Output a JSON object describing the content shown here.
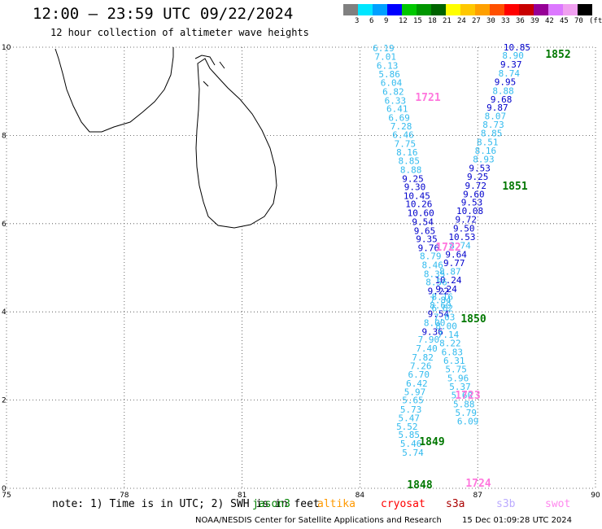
{
  "header": {
    "title": "12:00 – 23:59 UTC 09/22/2024",
    "subtitle": "12 hour collection of altimeter wave heights"
  },
  "colorbar": {
    "labels": [
      "3",
      "6",
      "9",
      "12",
      "15",
      "18",
      "21",
      "24",
      "27",
      "30",
      "33",
      "36",
      "39",
      "42",
      "45",
      "70"
    ],
    "unit": "(ft)",
    "colors": [
      "#808080",
      "#00e6ff",
      "#00a0ff",
      "#0000ff",
      "#00c800",
      "#009600",
      "#006400",
      "#ffff00",
      "#ffc800",
      "#ffa000",
      "#ff5000",
      "#ff0000",
      "#c80000",
      "#960096",
      "#dc78ff",
      "#f0a0f0",
      "#000000"
    ]
  },
  "legend": {
    "note": "note: 1) Time is in UTC; 2) SWH is in feet",
    "satellites": [
      {
        "name": "jason3",
        "color": "#008000"
      },
      {
        "name": "altika",
        "color": "#ff9900"
      },
      {
        "name": "cryosat",
        "color": "#ff0000"
      },
      {
        "name": "s3a",
        "color": "#aa0000"
      },
      {
        "name": "s3b",
        "color": "#bbaaff"
      },
      {
        "name": "swot",
        "color": "#ff88ee"
      }
    ]
  },
  "footer": {
    "agency": "NOAA/NESDIS Center for Satellite Applications and Research",
    "timestamp": "15 Dec 01:09:28 UTC 2024"
  },
  "map": {
    "lon_range": [
      75,
      90
    ],
    "lat_range": [
      0,
      10
    ],
    "x_ticks": [
      "75",
      "78",
      "81",
      "84",
      "87",
      "90"
    ],
    "y_ticks": [
      "0",
      "2",
      "4",
      "6",
      "8",
      "10"
    ],
    "grid": true,
    "colors": {
      "cyan": "#33bbee",
      "blue": "#0000cc",
      "green": "#007700",
      "pink": "#ff77dd"
    }
  },
  "observations": [
    {
      "v": "10.85",
      "lon": 88.0,
      "lat": 9.93,
      "c": "blue"
    },
    {
      "v": "8.90",
      "lon": 87.9,
      "lat": 9.74,
      "c": "cyan"
    },
    {
      "v": "9.37",
      "lon": 87.85,
      "lat": 9.54,
      "c": "blue"
    },
    {
      "v": "8.74",
      "lon": 87.8,
      "lat": 9.34,
      "c": "cyan"
    },
    {
      "v": "9.95",
      "lon": 87.7,
      "lat": 9.14,
      "c": "blue"
    },
    {
      "v": "8.88",
      "lon": 87.65,
      "lat": 8.94,
      "c": "cyan"
    },
    {
      "v": "9.68",
      "lon": 87.6,
      "lat": 8.75,
      "c": "blue"
    },
    {
      "v": "9.87",
      "lon": 87.5,
      "lat": 8.56,
      "c": "blue"
    },
    {
      "v": "8.07",
      "lon": 87.45,
      "lat": 8.37,
      "c": "cyan"
    },
    {
      "v": "8.73",
      "lon": 87.4,
      "lat": 8.17,
      "c": "cyan"
    },
    {
      "v": "8.85",
      "lon": 87.35,
      "lat": 7.98,
      "c": "cyan"
    },
    {
      "v": "8.51",
      "lon": 87.25,
      "lat": 7.78,
      "c": "cyan"
    },
    {
      "v": "8.16",
      "lon": 87.2,
      "lat": 7.58,
      "c": "cyan"
    },
    {
      "v": "8.93",
      "lon": 87.15,
      "lat": 7.39,
      "c": "cyan"
    },
    {
      "v": "9.53",
      "lon": 87.05,
      "lat": 7.19,
      "c": "blue"
    },
    {
      "v": "9.25",
      "lon": 87.0,
      "lat": 6.99,
      "c": "blue"
    },
    {
      "v": "9.72",
      "lon": 86.95,
      "lat": 6.79,
      "c": "blue"
    },
    {
      "v": "9.60",
      "lon": 86.9,
      "lat": 6.6,
      "c": "blue"
    },
    {
      "v": "9.53",
      "lon": 86.85,
      "lat": 6.41,
      "c": "blue"
    },
    {
      "v": "10.08",
      "lon": 86.8,
      "lat": 6.22,
      "c": "blue"
    },
    {
      "v": "9.72",
      "lon": 86.7,
      "lat": 6.02,
      "c": "blue"
    },
    {
      "v": "9.50",
      "lon": 86.65,
      "lat": 5.82,
      "c": "blue"
    },
    {
      "v": "10.53",
      "lon": 86.6,
      "lat": 5.63,
      "c": "blue"
    },
    {
      "v": "8.74",
      "lon": 86.55,
      "lat": 5.43,
      "c": "cyan"
    },
    {
      "v": "9.64",
      "lon": 86.45,
      "lat": 5.23,
      "c": "blue"
    },
    {
      "v": "9.77",
      "lon": 86.4,
      "lat": 5.04,
      "c": "blue"
    },
    {
      "v": "8.87",
      "lon": 86.3,
      "lat": 4.84,
      "c": "cyan"
    },
    {
      "v": "10.24",
      "lon": 86.25,
      "lat": 4.65,
      "c": "blue"
    },
    {
      "v": "9.24",
      "lon": 86.2,
      "lat": 4.45,
      "c": "blue"
    },
    {
      "v": "8.16",
      "lon": 86.1,
      "lat": 4.27,
      "c": "cyan"
    },
    {
      "v": "8.60",
      "lon": 86.05,
      "lat": 4.08,
      "c": "cyan"
    },
    {
      "v": "9.54",
      "lon": 86.0,
      "lat": 3.88,
      "c": "blue"
    },
    {
      "v": "8.00",
      "lon": 85.9,
      "lat": 3.68,
      "c": "cyan"
    },
    {
      "v": "9.36",
      "lon": 85.85,
      "lat": 3.48,
      "c": "blue"
    },
    {
      "v": "7.90",
      "lon": 85.75,
      "lat": 3.3,
      "c": "cyan"
    },
    {
      "v": "7.40",
      "lon": 85.7,
      "lat": 3.1,
      "c": "cyan"
    },
    {
      "v": "7.82",
      "lon": 85.6,
      "lat": 2.9,
      "c": "cyan"
    },
    {
      "v": "7.26",
      "lon": 85.55,
      "lat": 2.7,
      "c": "cyan"
    },
    {
      "v": "6.70",
      "lon": 85.5,
      "lat": 2.51,
      "c": "cyan"
    },
    {
      "v": "6.42",
      "lon": 85.45,
      "lat": 2.31,
      "c": "cyan"
    },
    {
      "v": "5.97",
      "lon": 85.4,
      "lat": 2.11,
      "c": "cyan"
    },
    {
      "v": "5.65",
      "lon": 85.35,
      "lat": 1.93,
      "c": "cyan"
    },
    {
      "v": "5.73",
      "lon": 85.3,
      "lat": 1.72,
      "c": "cyan"
    },
    {
      "v": "5.47",
      "lon": 85.25,
      "lat": 1.52,
      "c": "cyan"
    },
    {
      "v": "5.52",
      "lon": 85.2,
      "lat": 1.33,
      "c": "cyan"
    },
    {
      "v": "5.85",
      "lon": 85.25,
      "lat": 1.14,
      "c": "cyan"
    },
    {
      "v": "5.46",
      "lon": 85.3,
      "lat": 0.94,
      "c": "cyan"
    },
    {
      "v": "5.74",
      "lon": 85.35,
      "lat": 0.74,
      "c": "cyan"
    },
    {
      "v": "6.19",
      "lon": 84.6,
      "lat": 9.91,
      "c": "cyan"
    },
    {
      "v": "7.01",
      "lon": 84.65,
      "lat": 9.71,
      "c": "cyan"
    },
    {
      "v": "6.13",
      "lon": 84.7,
      "lat": 9.51,
      "c": "cyan"
    },
    {
      "v": "5.86",
      "lon": 84.75,
      "lat": 9.32,
      "c": "cyan"
    },
    {
      "v": "6.04",
      "lon": 84.8,
      "lat": 9.12,
      "c": "cyan"
    },
    {
      "v": "6.82",
      "lon": 84.85,
      "lat": 8.92,
      "c": "cyan"
    },
    {
      "v": "6.33",
      "lon": 84.9,
      "lat": 8.72,
      "c": "cyan"
    },
    {
      "v": "6.41",
      "lon": 84.95,
      "lat": 8.53,
      "c": "cyan"
    },
    {
      "v": "6.69",
      "lon": 85.0,
      "lat": 8.33,
      "c": "cyan"
    },
    {
      "v": "7.28",
      "lon": 85.05,
      "lat": 8.14,
      "c": "cyan"
    },
    {
      "v": "6.46",
      "lon": 85.1,
      "lat": 7.94,
      "c": "cyan"
    },
    {
      "v": "7.75",
      "lon": 85.15,
      "lat": 7.74,
      "c": "cyan"
    },
    {
      "v": "8.16",
      "lon": 85.2,
      "lat": 7.55,
      "c": "cyan"
    },
    {
      "v": "8.85",
      "lon": 85.25,
      "lat": 7.35,
      "c": "cyan"
    },
    {
      "v": "8.88",
      "lon": 85.3,
      "lat": 7.15,
      "c": "cyan"
    },
    {
      "v": "9.25",
      "lon": 85.35,
      "lat": 6.95,
      "c": "blue"
    },
    {
      "v": "9.30",
      "lon": 85.4,
      "lat": 6.76,
      "c": "blue"
    },
    {
      "v": "10.45",
      "lon": 85.45,
      "lat": 6.56,
      "c": "blue"
    },
    {
      "v": "10.26",
      "lon": 85.5,
      "lat": 6.37,
      "c": "blue"
    },
    {
      "v": "10.60",
      "lon": 85.55,
      "lat": 6.17,
      "c": "blue"
    },
    {
      "v": "9.54",
      "lon": 85.6,
      "lat": 5.97,
      "c": "blue"
    },
    {
      "v": "9.65",
      "lon": 85.65,
      "lat": 5.77,
      "c": "blue"
    },
    {
      "v": "9.35",
      "lon": 85.7,
      "lat": 5.58,
      "c": "blue"
    },
    {
      "v": "9.76",
      "lon": 85.75,
      "lat": 5.38,
      "c": "blue"
    },
    {
      "v": "8.79",
      "lon": 85.8,
      "lat": 5.19,
      "c": "cyan"
    },
    {
      "v": "8.46",
      "lon": 85.85,
      "lat": 4.99,
      "c": "cyan"
    },
    {
      "v": "8.35",
      "lon": 85.9,
      "lat": 4.79,
      "c": "cyan"
    },
    {
      "v": "8.56",
      "lon": 85.95,
      "lat": 4.6,
      "c": "cyan"
    },
    {
      "v": "9.22",
      "lon": 86.0,
      "lat": 4.4,
      "c": "blue"
    },
    {
      "v": "7.84",
      "lon": 86.05,
      "lat": 4.2,
      "c": "cyan"
    },
    {
      "v": "6.62",
      "lon": 86.1,
      "lat": 4.01,
      "c": "cyan"
    },
    {
      "v": "7.03",
      "lon": 86.15,
      "lat": 3.81,
      "c": "cyan"
    },
    {
      "v": "8.00",
      "lon": 86.2,
      "lat": 3.61,
      "c": "cyan"
    },
    {
      "v": "7.14",
      "lon": 86.25,
      "lat": 3.41,
      "c": "cyan"
    },
    {
      "v": "8.22",
      "lon": 86.3,
      "lat": 3.22,
      "c": "cyan"
    },
    {
      "v": "6.83",
      "lon": 86.35,
      "lat": 3.02,
      "c": "cyan"
    },
    {
      "v": "6.31",
      "lon": 86.4,
      "lat": 2.82,
      "c": "cyan"
    },
    {
      "v": "5.75",
      "lon": 86.45,
      "lat": 2.63,
      "c": "cyan"
    },
    {
      "v": "5.96",
      "lon": 86.5,
      "lat": 2.43,
      "c": "cyan"
    },
    {
      "v": "5.37",
      "lon": 86.55,
      "lat": 2.23,
      "c": "cyan"
    },
    {
      "v": "5.60",
      "lon": 86.6,
      "lat": 2.04,
      "c": "cyan"
    },
    {
      "v": "5.88",
      "lon": 86.65,
      "lat": 1.84,
      "c": "cyan"
    },
    {
      "v": "5.79",
      "lon": 86.7,
      "lat": 1.64,
      "c": "cyan"
    },
    {
      "v": "6.09",
      "lon": 86.75,
      "lat": 1.45,
      "c": "cyan"
    }
  ],
  "time_labels": [
    {
      "t": "1852",
      "c": "green"
    },
    {
      "t": "1851",
      "c": "green"
    },
    {
      "t": "1850",
      "c": "green"
    },
    {
      "t": "1849",
      "c": "green"
    },
    {
      "t": "1848",
      "c": "green"
    },
    {
      "t": "1721",
      "c": "pink"
    },
    {
      "t": "1722",
      "c": "pink"
    },
    {
      "t": "1723",
      "c": "pink"
    },
    {
      "t": "1724",
      "c": "pink"
    }
  ]
}
